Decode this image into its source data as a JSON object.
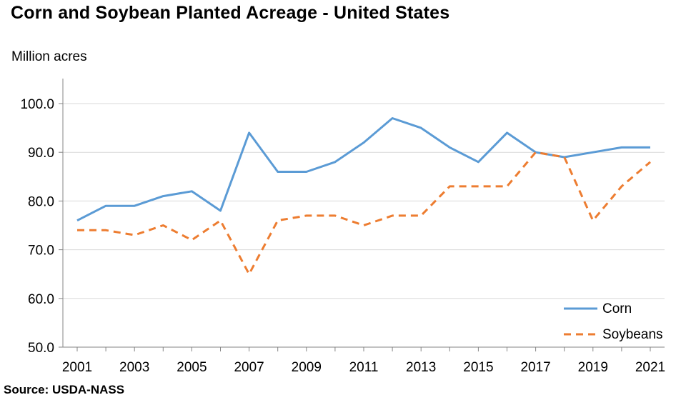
{
  "chart_data": {
    "type": "line",
    "title": "Corn and Soybean Planted Acreage - United States",
    "ylabel": "Million acres",
    "xlabel": "",
    "ylim": [
      50,
      100
    ],
    "yticks": [
      "50.0",
      "60.0",
      "70.0",
      "80.0",
      "90.0",
      "100.0"
    ],
    "ytick_values": [
      50,
      60,
      70,
      80,
      90,
      100
    ],
    "x": [
      2001,
      2002,
      2003,
      2004,
      2005,
      2006,
      2007,
      2008,
      2009,
      2010,
      2011,
      2012,
      2013,
      2014,
      2015,
      2016,
      2017,
      2018,
      2019,
      2020,
      2021
    ],
    "xtick_labels": [
      "2001",
      "2003",
      "2005",
      "2007",
      "2009",
      "2011",
      "2013",
      "2015",
      "2017",
      "2019",
      "2021"
    ],
    "xtick_values": [
      2001,
      2003,
      2005,
      2007,
      2009,
      2011,
      2013,
      2015,
      2017,
      2019,
      2021
    ],
    "grid": "horizontal",
    "legend_position": "bottom-right",
    "series": [
      {
        "name": "Corn",
        "color": "#5b9bd5",
        "style": "solid",
        "values": [
          76,
          79,
          79,
          81,
          82,
          78,
          94,
          86,
          86,
          88,
          92,
          97,
          95,
          91,
          88,
          94,
          90,
          89,
          90,
          91,
          91
        ]
      },
      {
        "name": "Soybeans",
        "color": "#ed7d31",
        "style": "dashed",
        "values": [
          74,
          74,
          73,
          75,
          72,
          76,
          65,
          76,
          77,
          77,
          75,
          77,
          77,
          83,
          83,
          83,
          90,
          89,
          76,
          83,
          88
        ]
      }
    ]
  },
  "source": "Source: USDA-NASS"
}
